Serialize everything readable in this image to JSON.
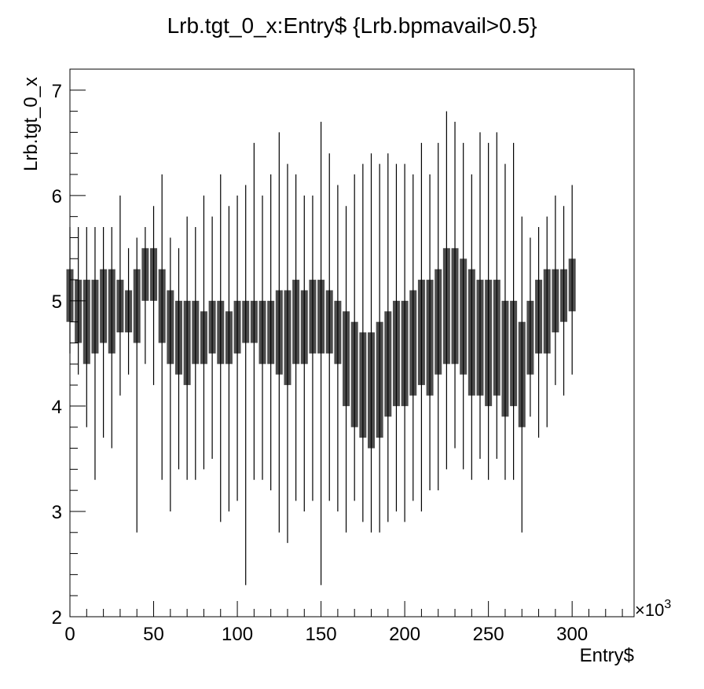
{
  "chart_data": {
    "type": "scatter",
    "title": "Lrb.tgt_0_x:Entry$ {Lrb.bpmavail>0.5}",
    "x_label": "Entry$",
    "y_label": "Lrb.tgt_0_x",
    "x_multiplier": {
      "base": "×10",
      "exponent": "3"
    },
    "color": "#000000",
    "xlim": [
      0,
      337
    ],
    "ylim": [
      2,
      7.2
    ],
    "xticks": [
      0,
      50,
      100,
      150,
      200,
      250,
      300
    ],
    "yticks": [
      2,
      3,
      4,
      5,
      6,
      7
    ],
    "xminorticks": [
      10,
      20,
      30,
      40,
      60,
      70,
      80,
      90,
      110,
      120,
      130,
      140,
      160,
      170,
      180,
      190,
      210,
      220,
      230,
      240,
      260,
      270,
      280,
      290,
      310,
      320,
      330
    ],
    "yminorticks": [
      2.2,
      2.4,
      2.6,
      2.8,
      3.2,
      3.4,
      3.6,
      3.8,
      4.2,
      4.4,
      4.6,
      4.8,
      5.2,
      5.4,
      5.6,
      5.8,
      6.2,
      6.4,
      6.6,
      6.8,
      7.2
    ],
    "x": [
      0,
      5,
      10,
      15,
      20,
      25,
      30,
      35,
      40,
      45,
      50,
      55,
      60,
      65,
      70,
      75,
      80,
      85,
      90,
      95,
      100,
      105,
      110,
      115,
      120,
      125,
      130,
      135,
      140,
      145,
      150,
      155,
      160,
      165,
      170,
      175,
      180,
      185,
      190,
      195,
      200,
      205,
      210,
      215,
      220,
      225,
      230,
      235,
      240,
      245,
      250,
      255,
      260,
      265,
      270,
      275,
      280,
      285,
      290,
      295,
      300
    ],
    "low": [
      4.5,
      4.3,
      3.8,
      3.3,
      3.7,
      3.6,
      4.1,
      4.3,
      2.8,
      4.4,
      4.2,
      3.3,
      3.0,
      3.4,
      3.3,
      3.3,
      3.4,
      3.5,
      2.9,
      3.0,
      3.1,
      2.3,
      3.3,
      3.3,
      3.2,
      2.8,
      2.7,
      3.1,
      3.0,
      3.1,
      2.3,
      3.1,
      3.0,
      2.8,
      3.1,
      2.9,
      2.8,
      2.8,
      2.9,
      3.0,
      2.9,
      3.1,
      3.0,
      3.2,
      3.2,
      3.4,
      3.6,
      3.4,
      3.3,
      3.5,
      3.3,
      3.5,
      3.3,
      3.3,
      2.8,
      3.9,
      3.7,
      3.8,
      4.2,
      4.1,
      4.3
    ],
    "q1": [
      4.8,
      4.6,
      4.4,
      4.5,
      4.6,
      4.5,
      4.7,
      4.7,
      4.6,
      5.0,
      5.0,
      4.6,
      4.4,
      4.3,
      4.2,
      4.4,
      4.4,
      4.5,
      4.4,
      4.4,
      4.5,
      4.6,
      4.6,
      4.4,
      4.4,
      4.3,
      4.2,
      4.4,
      4.4,
      4.5,
      4.5,
      4.5,
      4.4,
      4.0,
      3.8,
      3.7,
      3.6,
      3.7,
      3.9,
      4.0,
      4.0,
      4.1,
      4.2,
      4.1,
      4.3,
      4.4,
      4.4,
      4.3,
      4.1,
      4.1,
      4.0,
      4.1,
      3.9,
      4.0,
      3.8,
      4.3,
      4.5,
      4.5,
      4.7,
      4.8,
      4.9
    ],
    "q3": [
      5.3,
      5.2,
      5.2,
      5.2,
      5.3,
      5.3,
      5.2,
      5.1,
      5.3,
      5.5,
      5.5,
      5.3,
      5.1,
      5.0,
      5.0,
      5.0,
      4.9,
      5.0,
      5.0,
      4.9,
      5.0,
      5.0,
      5.0,
      5.0,
      5.0,
      5.1,
      5.1,
      5.2,
      5.1,
      5.2,
      5.2,
      5.1,
      5.0,
      4.9,
      4.8,
      4.7,
      4.7,
      4.8,
      4.9,
      5.0,
      5.0,
      5.1,
      5.2,
      5.2,
      5.3,
      5.5,
      5.5,
      5.4,
      5.3,
      5.2,
      5.2,
      5.2,
      5.0,
      5.0,
      4.8,
      5.0,
      5.2,
      5.3,
      5.3,
      5.3,
      5.4
    ],
    "high": [
      5.7,
      5.7,
      5.7,
      5.7,
      5.7,
      5.7,
      6.0,
      5.5,
      5.6,
      5.7,
      5.9,
      6.2,
      5.6,
      5.5,
      5.8,
      5.7,
      6.0,
      5.8,
      6.2,
      5.9,
      6.0,
      6.1,
      6.5,
      6.0,
      6.2,
      6.6,
      6.3,
      6.2,
      6.0,
      6.0,
      6.7,
      6.4,
      6.1,
      5.9,
      6.2,
      6.3,
      6.4,
      6.3,
      6.4,
      6.3,
      6.3,
      6.2,
      6.5,
      6.2,
      6.5,
      6.8,
      6.7,
      6.5,
      6.2,
      6.6,
      6.5,
      6.6,
      6.3,
      6.5,
      5.8,
      5.6,
      5.7,
      5.8,
      6.0,
      5.9,
      6.1
    ]
  }
}
